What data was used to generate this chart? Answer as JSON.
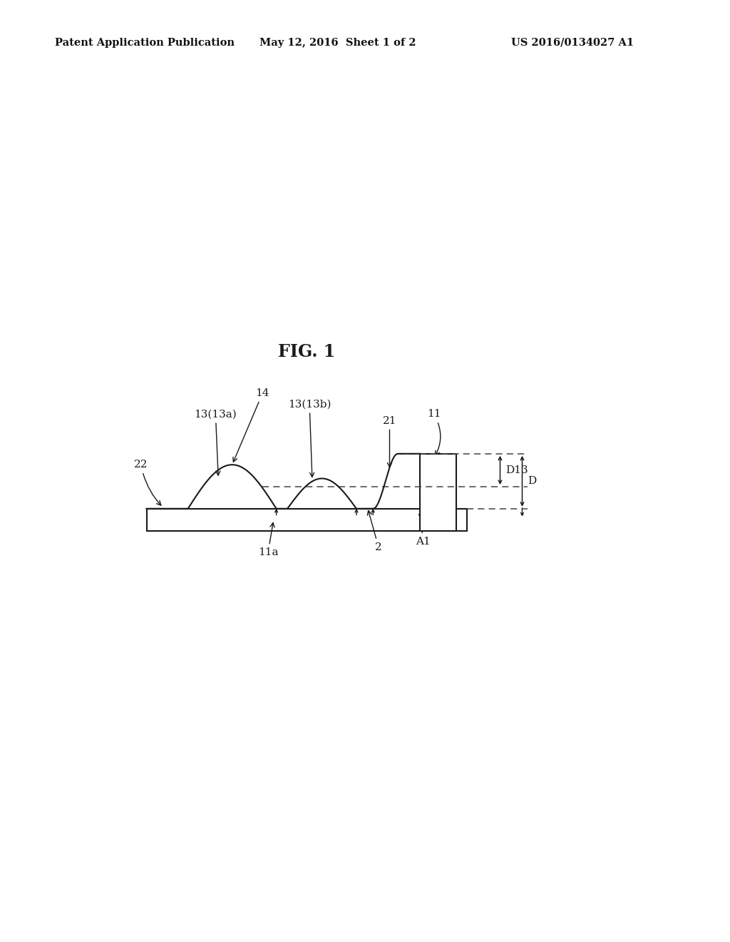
{
  "background_color": "#ffffff",
  "header_left": "Patent Application Publication",
  "header_center": "May 12, 2016  Sheet 1 of 2",
  "header_right": "US 2016/0134027 A1",
  "header_fontsize": 10.5,
  "fig_title": "FIG. 1",
  "fig_title_fontsize": 17,
  "line_color": "#1a1a1a",
  "dashed_color": "#444444",
  "label_fontsize": 11
}
